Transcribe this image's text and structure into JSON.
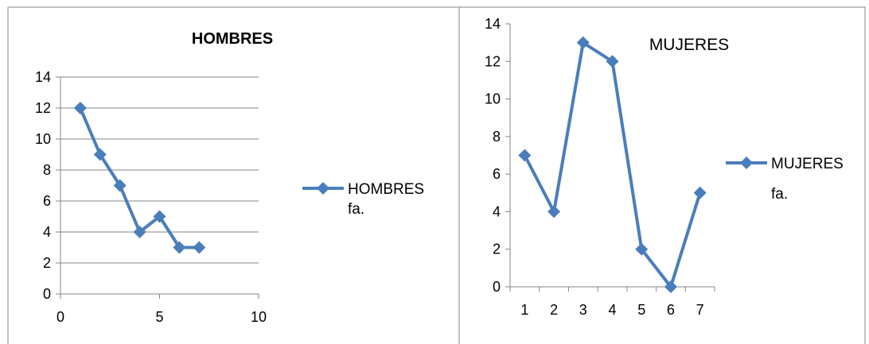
{
  "chart_data": [
    {
      "type": "scatter",
      "title": "HOMBRES",
      "series": [
        {
          "name": "HOMBRES fa.",
          "legend_lines": [
            "HOMBRES",
            "fa."
          ],
          "x": [
            1,
            2,
            3,
            4,
            5,
            6,
            7
          ],
          "values": [
            12,
            9,
            7,
            4,
            5,
            3,
            3
          ],
          "color": "#4A7EBB"
        }
      ],
      "xlim": [
        0,
        10
      ],
      "ylim": [
        0,
        14
      ],
      "x_ticks": [
        "0",
        "5",
        "10"
      ],
      "y_ticks": [
        "0",
        "2",
        "4",
        "6",
        "8",
        "10",
        "12",
        "14"
      ],
      "grid": true,
      "legend_position": "right"
    },
    {
      "type": "line",
      "title": "MUJERES",
      "categories": [
        "1",
        "2",
        "3",
        "4",
        "5",
        "6",
        "7"
      ],
      "series": [
        {
          "name": "MUJERES fa.",
          "legend_lines": [
            "MUJERES",
            "fa."
          ],
          "values": [
            7,
            4,
            13,
            12,
            2,
            0,
            5
          ],
          "color": "#4A7EBB"
        }
      ],
      "ylim": [
        0,
        14
      ],
      "y_ticks": [
        "0",
        "2",
        "4",
        "6",
        "8",
        "10",
        "12",
        "14"
      ],
      "grid": false,
      "legend_position": "right"
    }
  ],
  "colors": {
    "series": "#4A7EBB",
    "grid": "#868686",
    "border": "#868686"
  }
}
